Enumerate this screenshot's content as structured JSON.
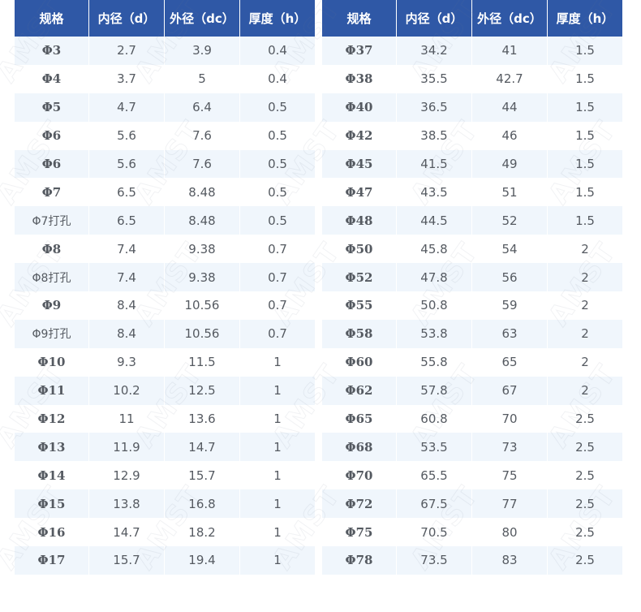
{
  "headers": [
    "规格",
    "内径（d）",
    "外径（dc）",
    "厚度（h）"
  ],
  "left_rows": [
    [
      "Φ3",
      "2.7",
      "3.9",
      "0.4"
    ],
    [
      "Φ4",
      "3.7",
      "5",
      "0.4"
    ],
    [
      "Φ5",
      "4.7",
      "6.4",
      "0.5"
    ],
    [
      "Φ6",
      "5.6",
      "7.6",
      "0.5"
    ],
    [
      "Φ6",
      "5.6",
      "7.6",
      "0.5"
    ],
    [
      "Φ7",
      "6.5",
      "8.48",
      "0.5"
    ],
    [
      "Φ7打孔",
      "6.5",
      "8.48",
      "0.5"
    ],
    [
      "Φ8",
      "7.4",
      "9.38",
      "0.7"
    ],
    [
      "Φ8打孔",
      "7.4",
      "9.38",
      "0.7"
    ],
    [
      "Φ9",
      "8.4",
      "10.56",
      "0.7"
    ],
    [
      "Φ9打孔",
      "8.4",
      "10.56",
      "0.7"
    ],
    [
      "Φ10",
      "9.3",
      "11.5",
      "1"
    ],
    [
      "Φ11",
      "10.2",
      "12.5",
      "1"
    ],
    [
      "Φ12",
      "11",
      "13.6",
      "1"
    ],
    [
      "Φ13",
      "11.9",
      "14.7",
      "1"
    ],
    [
      "Φ14",
      "12.9",
      "15.7",
      "1"
    ],
    [
      "Φ15",
      "13.8",
      "16.8",
      "1"
    ],
    [
      "Φ16",
      "14.7",
      "18.2",
      "1"
    ],
    [
      "Φ17",
      "15.7",
      "19.4",
      "1"
    ]
  ],
  "right_rows": [
    [
      "Φ37",
      "34.2",
      "41",
      "1.5"
    ],
    [
      "Φ38",
      "35.5",
      "42.7",
      "1.5"
    ],
    [
      "Φ40",
      "36.5",
      "44",
      "1.5"
    ],
    [
      "Φ42",
      "38.5",
      "46",
      "1.5"
    ],
    [
      "Φ45",
      "41.5",
      "49",
      "1.5"
    ],
    [
      "Φ47",
      "43.5",
      "51",
      "1.5"
    ],
    [
      "Φ48",
      "44.5",
      "52",
      "1.5"
    ],
    [
      "Φ50",
      "45.8",
      "54",
      "2"
    ],
    [
      "Φ52",
      "47.8",
      "56",
      "2"
    ],
    [
      "Φ55",
      "50.8",
      "59",
      "2"
    ],
    [
      "Φ58",
      "53.8",
      "63",
      "2"
    ],
    [
      "Φ60",
      "55.8",
      "65",
      "2"
    ],
    [
      "Φ62",
      "57.8",
      "67",
      "2"
    ],
    [
      "Φ65",
      "60.8",
      "70",
      "2.5"
    ],
    [
      "Φ68",
      "53.5",
      "73",
      "2.5"
    ],
    [
      "Φ70",
      "65.5",
      "75",
      "2.5"
    ],
    [
      "Φ72",
      "67.5",
      "77",
      "2.5"
    ],
    [
      "Φ75",
      "70.5",
      "80",
      "2.5"
    ],
    [
      "Φ78",
      "73.5",
      "83",
      "2.5"
    ]
  ],
  "watermark_text": "AMST",
  "colors": {
    "header_bg": "#2f58a6",
    "header_text": "#ffffff",
    "row_alt_bg": "#f0f6fc",
    "cell_text": "#555a61"
  }
}
